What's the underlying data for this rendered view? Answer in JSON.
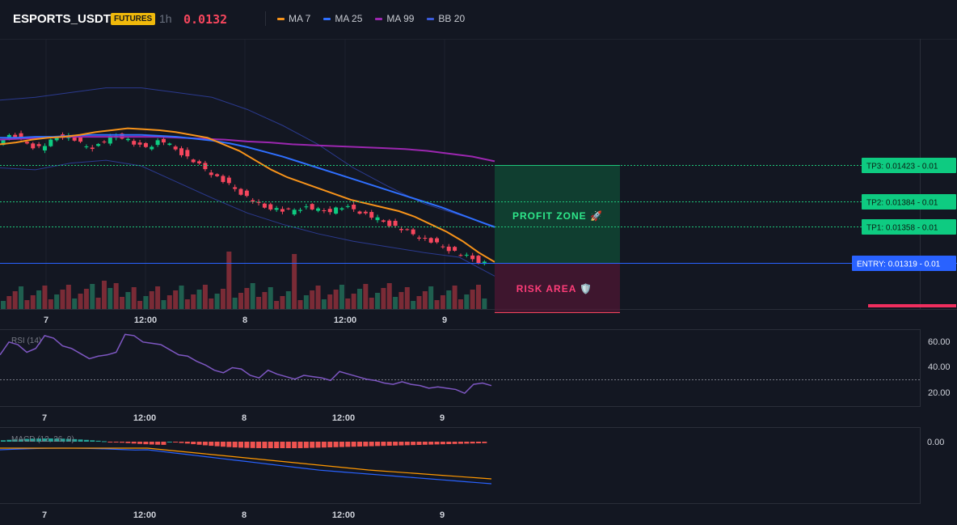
{
  "header": {
    "symbol": "ESPORTS_USDT",
    "badge": "FUTURES",
    "interval": "1h",
    "price": "0.0132",
    "legend": [
      {
        "label": "MA 7",
        "color": "#f7931a"
      },
      {
        "label": "MA 25",
        "color": "#2f6fff"
      },
      {
        "label": "MA 99",
        "color": "#9c27b0"
      },
      {
        "label": "BB 20",
        "color": "#3b5bdb"
      }
    ]
  },
  "zones": {
    "profit_label": "PROFIT ZONE 🚀",
    "risk_label": "RISK AREA 🛡️"
  },
  "levels": [
    {
      "label": "TP3: 0.01423",
      "suffix": "- 0.01",
      "value": 0.01423,
      "kind": "tp"
    },
    {
      "label": "TP2: 0.01384",
      "suffix": "- 0.01",
      "value": 0.01384,
      "kind": "tp"
    },
    {
      "label": "TP1: 0.01358",
      "suffix": "- 0.01",
      "value": 0.01358,
      "kind": "tp"
    },
    {
      "label": "ENTRY: 0.01319",
      "suffix": "- 0.01",
      "value": 0.01319,
      "kind": "entry"
    }
  ],
  "x_ticks": [
    "7",
    "12:00",
    "8",
    "12:00",
    "9"
  ],
  "rsi": {
    "label": "RSI (14)",
    "ticks": [
      "60.00",
      "40.00",
      "20.00"
    ]
  },
  "macd": {
    "label": "MACD (12, 26, 9)",
    "ticks": [
      "0.00"
    ]
  },
  "chart_data": {
    "type": "candlestick",
    "timeframe": "1h",
    "x_labels": [
      "7",
      "12:00",
      "8",
      "12:00",
      "9"
    ],
    "ma7": [
      0.01445,
      0.01447,
      0.0145,
      0.01452,
      0.01453,
      0.01455,
      0.01458,
      0.0146,
      0.01462,
      0.01461,
      0.0146,
      0.01458,
      0.01455,
      0.01452,
      0.01445,
      0.01438,
      0.01428,
      0.01418,
      0.0141,
      0.01404,
      0.01398,
      0.01392,
      0.01386,
      0.01382,
      0.01378,
      0.01374,
      0.01368,
      0.0136,
      0.01352,
      0.01342,
      0.0133,
      0.0132
    ],
    "ma25": [
      0.01452,
      0.01452,
      0.01453,
      0.01453,
      0.01454,
      0.01455,
      0.01455,
      0.01455,
      0.01455,
      0.01454,
      0.01453,
      0.01451,
      0.01449,
      0.01446,
      0.01442,
      0.01437,
      0.01432,
      0.01426,
      0.0142,
      0.01414,
      0.01408,
      0.01402,
      0.01396,
      0.0139,
      0.01384,
      0.01378,
      0.01371,
      0.01364,
      0.01357
    ],
    "ma99": [
      0.0145,
      0.01451,
      0.01452,
      0.01453,
      0.01453,
      0.01453,
      0.01453,
      0.01453,
      0.01452,
      0.01451,
      0.0145,
      0.01448,
      0.01447,
      0.01445,
      0.01444,
      0.01443,
      0.01442,
      0.01441,
      0.0144,
      0.01438,
      0.01435,
      0.01432,
      0.01427
    ],
    "rsi_values": [
      50,
      60,
      58,
      52,
      55,
      65,
      63,
      57,
      55,
      51,
      47,
      49,
      50,
      52,
      66,
      65,
      60,
      59,
      58,
      54,
      50,
      49,
      45,
      42,
      38,
      36,
      40,
      39,
      34,
      32,
      38,
      35,
      33,
      31,
      34,
      33,
      32,
      30,
      37,
      35,
      33,
      31,
      30,
      28,
      27,
      29,
      27,
      26,
      24,
      25,
      24,
      23,
      20,
      27,
      28,
      26
    ]
  }
}
